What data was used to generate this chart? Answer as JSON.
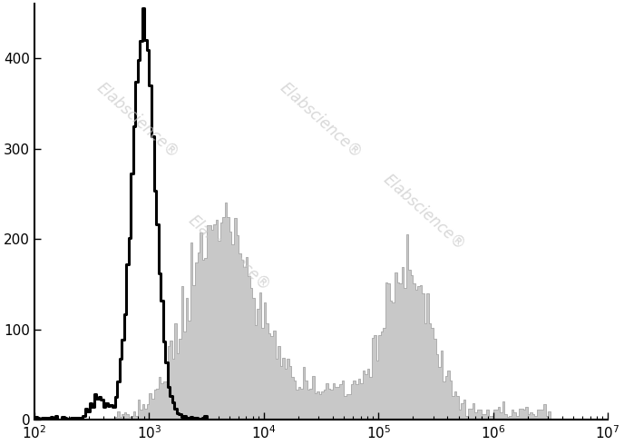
{
  "xlim": [
    100,
    10000000.0
  ],
  "ylim": [
    0,
    460
  ],
  "yticks": [
    0,
    100,
    200,
    300,
    400
  ],
  "xticks": [
    100,
    1000,
    10000,
    100000,
    1000000,
    10000000
  ],
  "background_color": "#ffffff",
  "watermark_text": "Elabscience",
  "watermark_color": "#c8c8c8",
  "isotype_color": "#000000",
  "antibody_fill_color": "#c8c8c8",
  "antibody_edge_color": "#999999",
  "isotype_peak_log": 2.95,
  "isotype_peak_count": 455,
  "antibody_peak1_log": 3.62,
  "antibody_peak1_count": 240,
  "antibody_peak2_log": 5.25,
  "antibody_peak2_count": 120,
  "n_bins": 250,
  "log_min": 2.0,
  "log_max": 7.0
}
